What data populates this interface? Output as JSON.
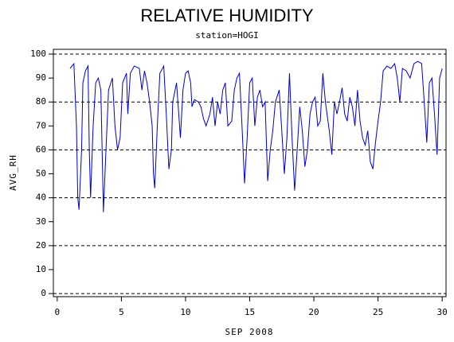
{
  "chart_data": {
    "type": "line",
    "title": "RELATIVE HUMIDITY",
    "subtitle": "station=HOGI",
    "x_label": "SEP 2008",
    "y_label": "AVG_RH",
    "color": "#0000cc",
    "x": [
      1.0,
      1.3,
      1.5,
      1.6,
      1.7,
      1.9,
      2.0,
      2.2,
      2.4,
      2.5,
      2.6,
      2.8,
      3.0,
      3.2,
      3.4,
      3.5,
      3.6,
      3.8,
      4.0,
      4.3,
      4.5,
      4.7,
      4.9,
      5.1,
      5.4,
      5.5,
      5.7,
      6.0,
      6.4,
      6.6,
      6.8,
      7.0,
      7.2,
      7.4,
      7.5,
      7.6,
      7.8,
      8.0,
      8.3,
      8.5,
      8.7,
      8.9,
      9.0,
      9.3,
      9.6,
      9.8,
      10.0,
      10.2,
      10.4,
      10.5,
      10.7,
      11.0,
      11.2,
      11.4,
      11.6,
      11.9,
      12.1,
      12.3,
      12.5,
      12.7,
      12.9,
      13.1,
      13.3,
      13.6,
      13.8,
      14.0,
      14.2,
      14.4,
      14.6,
      14.8,
      15.0,
      15.2,
      15.4,
      15.6,
      15.8,
      16.0,
      16.2,
      16.4,
      16.6,
      16.8,
      17.0,
      17.3,
      17.5,
      17.7,
      17.9,
      18.1,
      18.3,
      18.5,
      18.7,
      18.9,
      19.1,
      19.3,
      19.5,
      19.7,
      19.9,
      20.1,
      20.3,
      20.5,
      20.7,
      20.9,
      21.2,
      21.4,
      21.6,
      21.8,
      22.0,
      22.2,
      22.4,
      22.6,
      22.8,
      23.0,
      23.2,
      23.4,
      23.6,
      23.8,
      24.0,
      24.2,
      24.4,
      24.6,
      24.8,
      25.0,
      25.2,
      25.4,
      25.7,
      26.0,
      26.3,
      26.5,
      26.7,
      26.9,
      27.2,
      27.5,
      27.8,
      28.1,
      28.4,
      28.6,
      28.8,
      29.0,
      29.2,
      29.4,
      29.6,
      29.8,
      30.0
    ],
    "values": [
      94,
      96,
      70,
      40,
      35,
      60,
      88,
      93,
      95,
      60,
      40,
      70,
      88,
      90,
      85,
      60,
      34,
      60,
      85,
      90,
      70,
      60,
      65,
      88,
      92,
      75,
      92,
      95,
      94,
      85,
      93,
      88,
      80,
      70,
      50,
      44,
      70,
      92,
      95,
      75,
      52,
      60,
      80,
      88,
      65,
      85,
      92,
      93,
      88,
      78,
      81,
      80,
      78,
      73,
      70,
      75,
      82,
      70,
      80,
      75,
      85,
      88,
      70,
      72,
      85,
      90,
      92,
      70,
      46,
      65,
      88,
      90,
      70,
      82,
      85,
      78,
      80,
      47,
      60,
      68,
      80,
      85,
      68,
      50,
      65,
      92,
      65,
      43,
      60,
      78,
      68,
      53,
      60,
      75,
      80,
      82,
      70,
      72,
      92,
      80,
      68,
      58,
      80,
      75,
      80,
      86,
      75,
      72,
      82,
      78,
      70,
      85,
      72,
      65,
      62,
      68,
      55,
      52,
      63,
      72,
      80,
      93,
      95,
      94,
      96,
      90,
      80,
      94,
      93,
      90,
      96,
      97,
      96,
      80,
      63,
      88,
      90,
      75,
      58,
      90,
      94
    ],
    "xlim": [
      -0.3,
      30.3
    ],
    "ylim": [
      -1.3,
      102
    ],
    "xticks": [
      0,
      5,
      10,
      15,
      20,
      25,
      30
    ],
    "yticks": [
      0,
      10,
      20,
      30,
      40,
      50,
      60,
      70,
      80,
      90,
      100
    ],
    "ygrid": [
      0,
      20,
      40,
      60,
      80,
      100
    ]
  }
}
